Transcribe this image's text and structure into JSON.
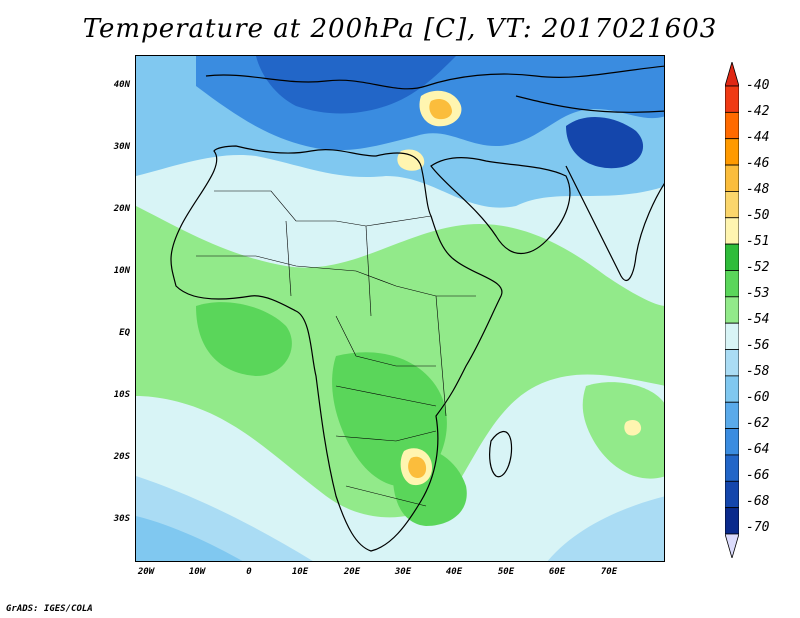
{
  "title": "Temperature at 200hPa [C], VT: 2017021603",
  "footer": "GrADS: IGES/COLA",
  "map": {
    "projection": "lat-lon",
    "lon_range": [
      -25,
      80
    ],
    "lat_range": [
      -37,
      45
    ],
    "lat_ticks": [
      {
        "label": "40N",
        "lat": 40
      },
      {
        "label": "30N",
        "lat": 30
      },
      {
        "label": "20N",
        "lat": 20
      },
      {
        "label": "10N",
        "lat": 10
      },
      {
        "label": "EQ",
        "lat": 0
      },
      {
        "label": "10S",
        "lat": -10
      },
      {
        "label": "20S",
        "lat": -20
      },
      {
        "label": "30S",
        "lat": -30
      }
    ],
    "lon_ticks": [
      {
        "label": "20W",
        "lon": -20
      },
      {
        "label": "10W",
        "lon": -10
      },
      {
        "label": "0",
        "lon": 0
      },
      {
        "label": "10E",
        "lon": 10
      },
      {
        "label": "20E",
        "lon": 20
      },
      {
        "label": "30E",
        "lon": 30
      },
      {
        "label": "40E",
        "lon": 40
      },
      {
        "label": "50E",
        "lon": 50
      },
      {
        "label": "60E",
        "lon": 60
      },
      {
        "label": "70E",
        "lon": 70
      }
    ]
  },
  "colorbar": {
    "levels": [
      "-40",
      "-42",
      "-44",
      "-46",
      "-48",
      "-50",
      "-51",
      "-52",
      "-53",
      "-54",
      "-56",
      "-58",
      "-60",
      "-62",
      "-64",
      "-66",
      "-68",
      "-70"
    ],
    "colors": [
      "#f03a14",
      "#ff6a00",
      "#ff9a00",
      "#fbbd3c",
      "#fbd66c",
      "#fff5b0",
      "#2fbc3a",
      "#5ad65a",
      "#92ea8a",
      "#d8f4f6",
      "#aadcf4",
      "#80c8f0",
      "#5aaaea",
      "#3a8ce0",
      "#2266c8",
      "#1446ac",
      "#0a2a8c"
    ],
    "over_color": "#e02814",
    "under_color": "#dcdcfc"
  }
}
